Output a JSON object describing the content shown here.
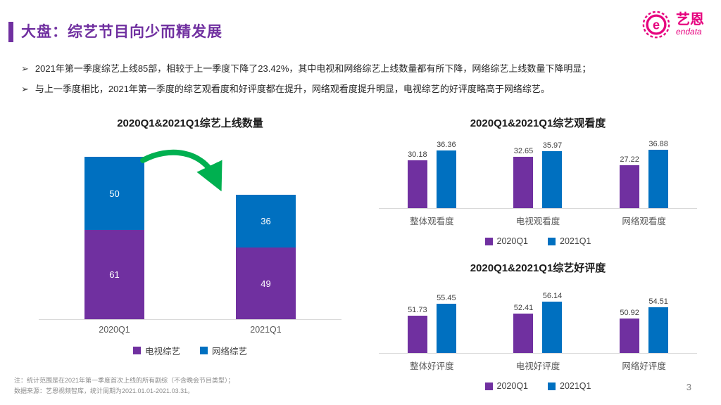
{
  "slide": {
    "title": "大盘：综艺节目向少而精发展",
    "bullet_marker": "➢",
    "bullets": [
      "2021年第一季度综艺上线85部，相较于上一季度下降了23.42%，其中电视和网络综艺上线数量都有所下降，网络综艺上线数量下降明显；",
      "与上一季度相比，2021年第一季度的综艺观看度和好评度都在提升，网络观看度提升明显，电视综艺的好评度略高于网络综艺。"
    ],
    "notes": [
      "注：统计范围是在2021年第一季度首次上线的所有剧综（不含晚会节目类型）；",
      "数据来源：艺恩视频智库，统计周期为2021.01.01-2021.03.31。"
    ],
    "page_number": "3",
    "logo": {
      "brand_cn": "艺恩",
      "brand_en": "endata",
      "icon": "e-circle-icon"
    }
  },
  "colors": {
    "purple": "#7030A0",
    "blue": "#0070C0",
    "green": "#00B050",
    "magenta": "#E6007E"
  },
  "chart_data": [
    {
      "type": "bar",
      "subtype": "stacked",
      "title": "2020Q1&2021Q1综艺上线数量",
      "categories": [
        "2020Q1",
        "2021Q1"
      ],
      "series": [
        {
          "name": "电视综艺",
          "color_key": "purple",
          "values": [
            61,
            49
          ]
        },
        {
          "name": "网络综艺",
          "color_key": "blue",
          "values": [
            50,
            36
          ]
        }
      ],
      "totals": [
        111,
        85
      ],
      "annotation": "green-decrease-arrow",
      "ylim": [
        0,
        120
      ],
      "grid": false,
      "legend_position": "bottom",
      "value_labels": "inside"
    },
    {
      "type": "bar",
      "subtype": "grouped",
      "title": "2020Q1&2021Q1综艺观看度",
      "categories": [
        "整体观看度",
        "电视观看度",
        "网络观看度"
      ],
      "series": [
        {
          "name": "2020Q1",
          "color_key": "purple",
          "values": [
            30.18,
            32.65,
            27.22
          ]
        },
        {
          "name": "2021Q1",
          "color_key": "blue",
          "values": [
            36.36,
            35.97,
            36.88
          ]
        }
      ],
      "ylim": [
        0,
        40
      ],
      "grid": false,
      "legend_position": "bottom",
      "value_labels": "above"
    },
    {
      "type": "bar",
      "subtype": "grouped",
      "title": "2020Q1&2021Q1综艺好评度",
      "categories": [
        "整体好评度",
        "电视好评度",
        "网络好评度"
      ],
      "series": [
        {
          "name": "2020Q1",
          "color_key": "purple",
          "values": [
            51.73,
            52.41,
            50.92
          ]
        },
        {
          "name": "2021Q1",
          "color_key": "blue",
          "values": [
            55.45,
            56.14,
            54.51
          ]
        }
      ],
      "ylim": [
        40,
        60
      ],
      "grid": false,
      "legend_position": "bottom",
      "value_labels": "above"
    }
  ]
}
